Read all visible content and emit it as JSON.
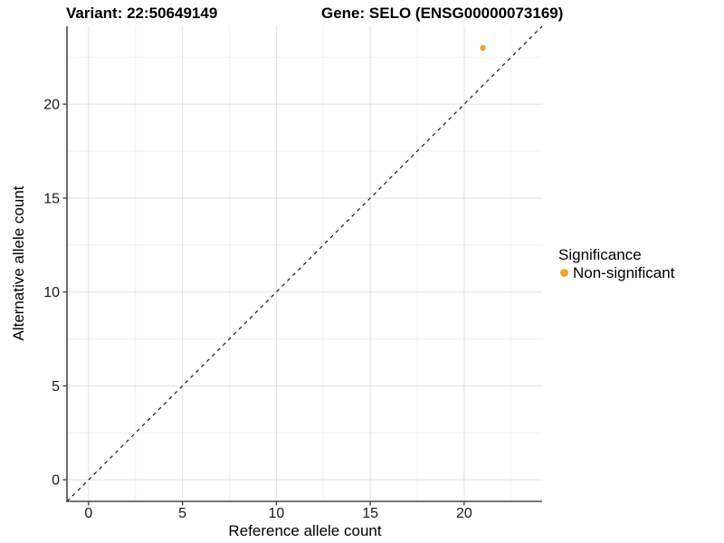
{
  "chart_data": {
    "type": "scatter",
    "title_variant": "Variant: 22:50649149",
    "title_gene": "Gene: SELO (ENSG00000073169)",
    "xlabel": "Reference allele count",
    "ylabel": "Alternative allele count",
    "xlim": [
      -1.15,
      24.15
    ],
    "ylim": [
      -1.15,
      24.15
    ],
    "x_major_ticks": [
      0,
      5,
      10,
      15,
      20
    ],
    "y_major_ticks": [
      0,
      5,
      10,
      15,
      20
    ],
    "x_minor_ticks": [
      2.5,
      7.5,
      12.5,
      17.5,
      22.5
    ],
    "y_minor_ticks": [
      2.5,
      7.5,
      12.5,
      17.5,
      22.5
    ],
    "grid": true,
    "points": [
      {
        "x": 21,
        "y": 23,
        "significance": "Non-significant"
      }
    ],
    "identity_line": {
      "style": "dashed",
      "slope": 1,
      "intercept": 0,
      "color": "#000000"
    },
    "legend": {
      "title": "Significance",
      "position": "right",
      "items": [
        {
          "label": "Non-significant",
          "color": "#FAA029"
        }
      ]
    },
    "colors": {
      "point": "#FAA029",
      "grid_major": "#E2E2E2",
      "grid_minor": "#F1F1F1",
      "axis_line": "#464646",
      "tick_text": "#1A1A1A"
    }
  }
}
